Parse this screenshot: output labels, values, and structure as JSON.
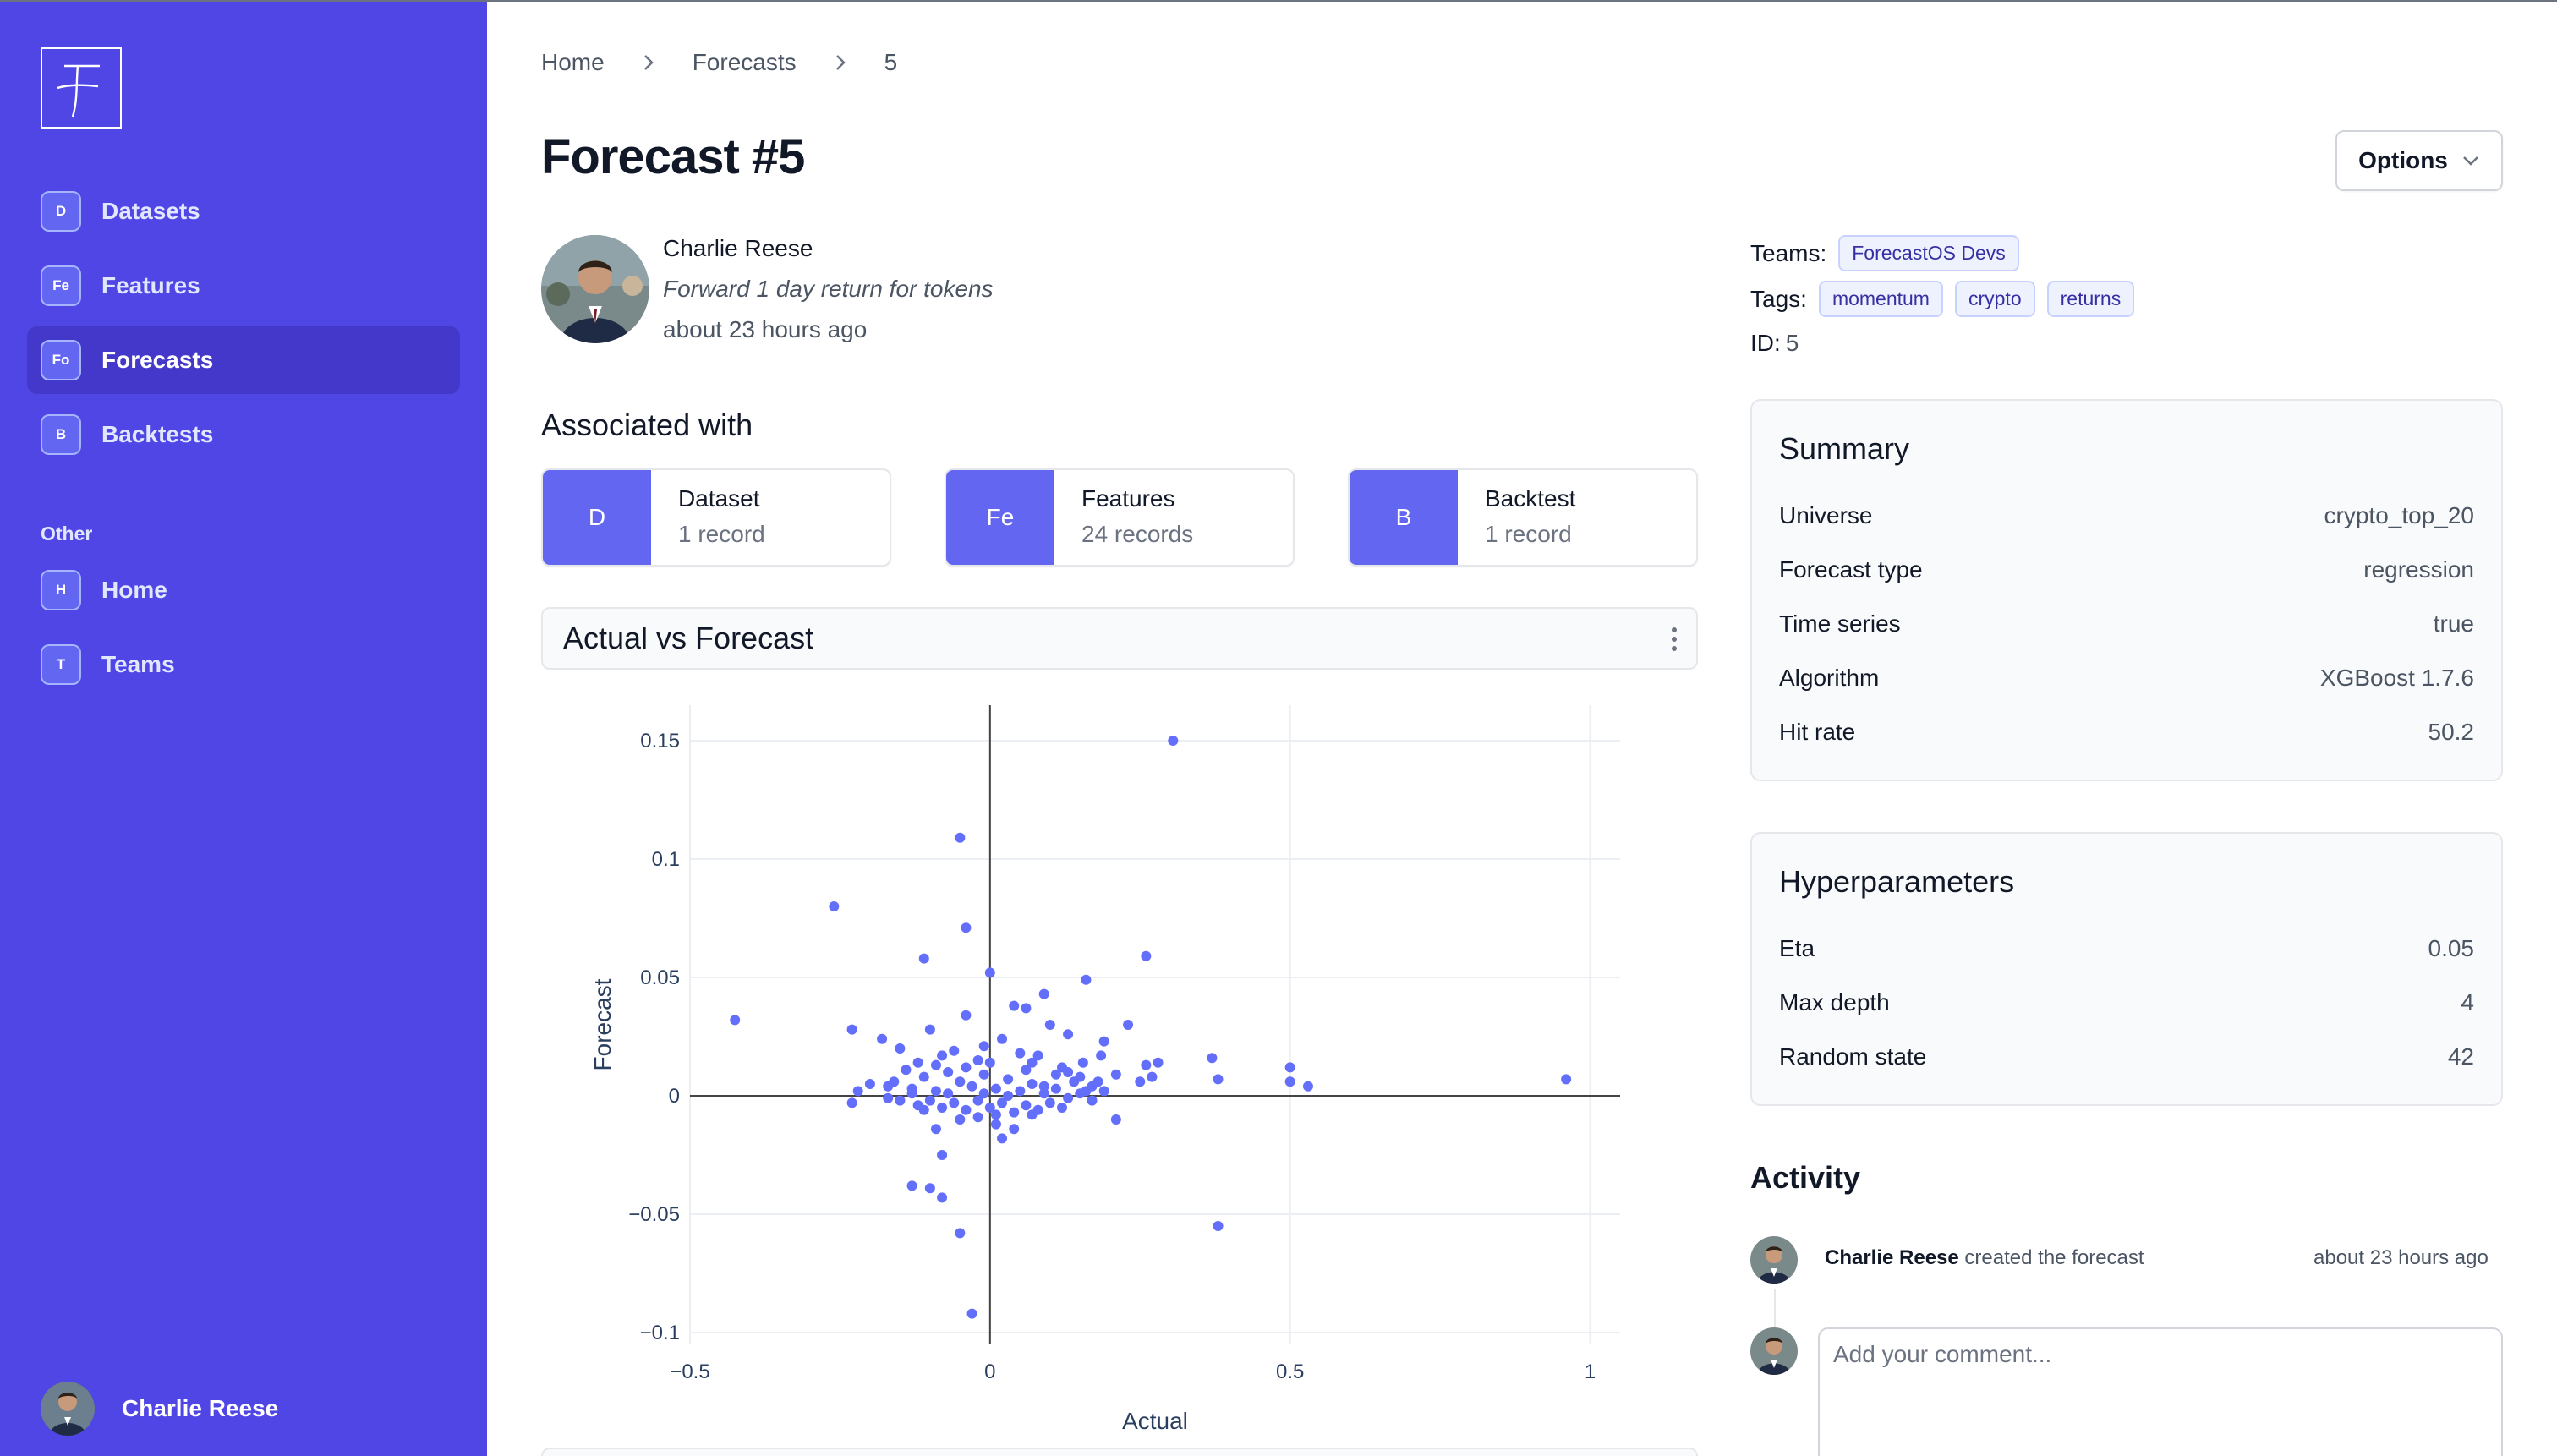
{
  "sidebar": {
    "logo_letter": "F",
    "items": [
      {
        "badge": "D",
        "label": "Datasets",
        "active": false
      },
      {
        "badge": "Fe",
        "label": "Features",
        "active": false
      },
      {
        "badge": "Fo",
        "label": "Forecasts",
        "active": true
      },
      {
        "badge": "B",
        "label": "Backtests",
        "active": false
      }
    ],
    "other_label": "Other",
    "other_items": [
      {
        "badge": "H",
        "label": "Home"
      },
      {
        "badge": "T",
        "label": "Teams"
      }
    ],
    "user_name": "Charlie Reese"
  },
  "breadcrumb": [
    "Home",
    "Forecasts",
    "5"
  ],
  "page": {
    "title": "Forecast #5",
    "options_label": "Options"
  },
  "author": {
    "name": "Charlie Reese",
    "description": "Forward 1 day return for tokens",
    "time": "about 23 hours ago"
  },
  "associated": {
    "title": "Associated with",
    "cards": [
      {
        "badge": "D",
        "name": "Dataset",
        "count": "1 record"
      },
      {
        "badge": "Fe",
        "name": "Features",
        "count": "24 records"
      },
      {
        "badge": "B",
        "name": "Backtest",
        "count": "1 record"
      }
    ]
  },
  "chart_title": "Actual vs Forecast",
  "chart_data": {
    "type": "scatter",
    "title": "",
    "xlabel": "Actual",
    "ylabel": "Forecast",
    "xlim": [
      -0.5,
      1.05
    ],
    "ylim": [
      -0.105,
      0.165
    ],
    "x_ticks": [
      -0.5,
      0,
      0.5,
      1
    ],
    "x_tick_labels": [
      "−0.5",
      "0",
      "0.5",
      "1"
    ],
    "y_ticks": [
      -0.1,
      -0.05,
      0,
      0.05,
      0.1,
      0.15
    ],
    "y_tick_labels": [
      "−0.1",
      "−0.05",
      "0",
      "0.05",
      "0.1",
      "0.15"
    ],
    "grid": true,
    "color": "#636efa",
    "points": [
      [
        0.305,
        0.15
      ],
      [
        -0.05,
        0.109
      ],
      [
        -0.26,
        0.08
      ],
      [
        -0.04,
        0.071
      ],
      [
        -0.11,
        0.058
      ],
      [
        0.26,
        0.059
      ],
      [
        0.16,
        0.049
      ],
      [
        0.09,
        0.043
      ],
      [
        -0.425,
        0.032
      ],
      [
        -0.23,
        0.028
      ],
      [
        -0.18,
        0.024
      ],
      [
        -0.15,
        0.02
      ],
      [
        -0.1,
        0.028
      ],
      [
        -0.04,
        0.034
      ],
      [
        0.04,
        0.038
      ],
      [
        0.06,
        0.037
      ],
      [
        0.1,
        0.03
      ],
      [
        0.23,
        0.03
      ],
      [
        0.13,
        0.026
      ],
      [
        0.19,
        0.023
      ],
      [
        0.26,
        0.013
      ],
      [
        0.28,
        0.014
      ],
      [
        0.37,
        0.016
      ],
      [
        0.38,
        0.007
      ],
      [
        0.5,
        0.012
      ],
      [
        0.5,
        0.006
      ],
      [
        0.53,
        0.004
      ],
      [
        0.96,
        0.007
      ],
      [
        0.185,
        0.017
      ],
      [
        0.155,
        0.014
      ],
      [
        0.21,
        0.009
      ],
      [
        0.25,
        0.006
      ],
      [
        0.27,
        0.008
      ],
      [
        -0.22,
        0.002
      ],
      [
        -0.2,
        0.005
      ],
      [
        -0.23,
        -0.003
      ],
      [
        -0.17,
        -0.001
      ],
      [
        0.21,
        -0.01
      ],
      [
        -0.05,
        -0.01
      ],
      [
        -0.09,
        -0.014
      ],
      [
        -0.08,
        -0.025
      ],
      [
        -0.13,
        -0.038
      ],
      [
        -0.1,
        -0.039
      ],
      [
        -0.08,
        -0.043
      ],
      [
        -0.05,
        -0.058
      ],
      [
        -0.03,
        -0.092
      ],
      [
        0.38,
        -0.055
      ],
      [
        0.02,
        -0.018
      ],
      [
        0.04,
        -0.014
      ],
      [
        0.01,
        -0.008
      ],
      [
        0.0,
        0.052
      ],
      [
        -0.01,
        0.021
      ],
      [
        0.02,
        0.024
      ],
      [
        0.08,
        0.017
      ],
      [
        0.12,
        0.012
      ],
      [
        -0.14,
        0.011
      ],
      [
        -0.12,
        0.014
      ],
      [
        -0.08,
        0.017
      ],
      [
        -0.06,
        0.019
      ],
      [
        -0.02,
        0.015
      ],
      [
        0.05,
        0.018
      ],
      [
        0.07,
        0.014
      ],
      [
        0.11,
        0.009
      ],
      [
        0.14,
        0.006
      ],
      [
        0.17,
        0.004
      ],
      [
        -0.16,
        0.006
      ],
      [
        -0.13,
        0.003
      ],
      [
        -0.11,
        0.008
      ],
      [
        -0.09,
        0.002
      ],
      [
        -0.07,
        0.01
      ],
      [
        -0.05,
        0.006
      ],
      [
        -0.03,
        0.004
      ],
      [
        -0.01,
        0.009
      ],
      [
        0.01,
        0.003
      ],
      [
        0.03,
        0.007
      ],
      [
        0.05,
        0.002
      ],
      [
        0.07,
        0.005
      ],
      [
        0.09,
        0.001
      ],
      [
        0.11,
        0.003
      ],
      [
        0.13,
        -0.001
      ],
      [
        0.15,
        0.001
      ],
      [
        0.17,
        -0.002
      ],
      [
        0.19,
        0.002
      ],
      [
        -0.15,
        -0.002
      ],
      [
        -0.12,
        -0.004
      ],
      [
        -0.1,
        -0.002
      ],
      [
        -0.08,
        -0.005
      ],
      [
        -0.06,
        -0.003
      ],
      [
        -0.04,
        -0.006
      ],
      [
        -0.02,
        -0.002
      ],
      [
        0.0,
        -0.005
      ],
      [
        0.02,
        -0.003
      ],
      [
        0.04,
        -0.007
      ],
      [
        0.06,
        -0.004
      ],
      [
        0.08,
        -0.006
      ],
      [
        0.1,
        -0.003
      ],
      [
        0.12,
        -0.005
      ],
      [
        -0.13,
        0.001
      ],
      [
        -0.07,
        0.001
      ],
      [
        -0.01,
        0.001
      ],
      [
        0.03,
        0.0
      ],
      [
        0.09,
        0.004
      ],
      [
        0.15,
        0.008
      ],
      [
        -0.04,
        0.012
      ],
      [
        0.0,
        0.014
      ],
      [
        0.06,
        0.011
      ],
      [
        -0.09,
        0.013
      ],
      [
        0.16,
        0.002
      ],
      [
        -0.17,
        0.004
      ],
      [
        0.01,
        -0.012
      ],
      [
        -0.02,
        -0.009
      ],
      [
        0.07,
        -0.008
      ],
      [
        -0.11,
        -0.006
      ],
      [
        0.13,
        0.01
      ],
      [
        0.18,
        0.006
      ]
    ]
  },
  "meta": {
    "teams_label": "Teams:",
    "teams": [
      "ForecastOS Devs"
    ],
    "tags_label": "Tags:",
    "tags": [
      "momentum",
      "crypto",
      "returns"
    ],
    "id_label": "ID:",
    "id_value": "5"
  },
  "summary": {
    "title": "Summary",
    "rows": [
      {
        "k": "Universe",
        "v": "crypto_top_20"
      },
      {
        "k": "Forecast type",
        "v": "regression"
      },
      {
        "k": "Time series",
        "v": "true"
      },
      {
        "k": "Algorithm",
        "v": "XGBoost 1.7.6"
      },
      {
        "k": "Hit rate",
        "v": "50.2"
      }
    ]
  },
  "hyperparameters": {
    "title": "Hyperparameters",
    "rows": [
      {
        "k": "Eta",
        "v": "0.05"
      },
      {
        "k": "Max depth",
        "v": "4"
      },
      {
        "k": "Random state",
        "v": "42"
      }
    ]
  },
  "activity": {
    "title": "Activity",
    "user": "Charlie Reese",
    "action": " created the forecast",
    "time": "about 23 hours ago",
    "comment_placeholder": "Add your comment..."
  }
}
